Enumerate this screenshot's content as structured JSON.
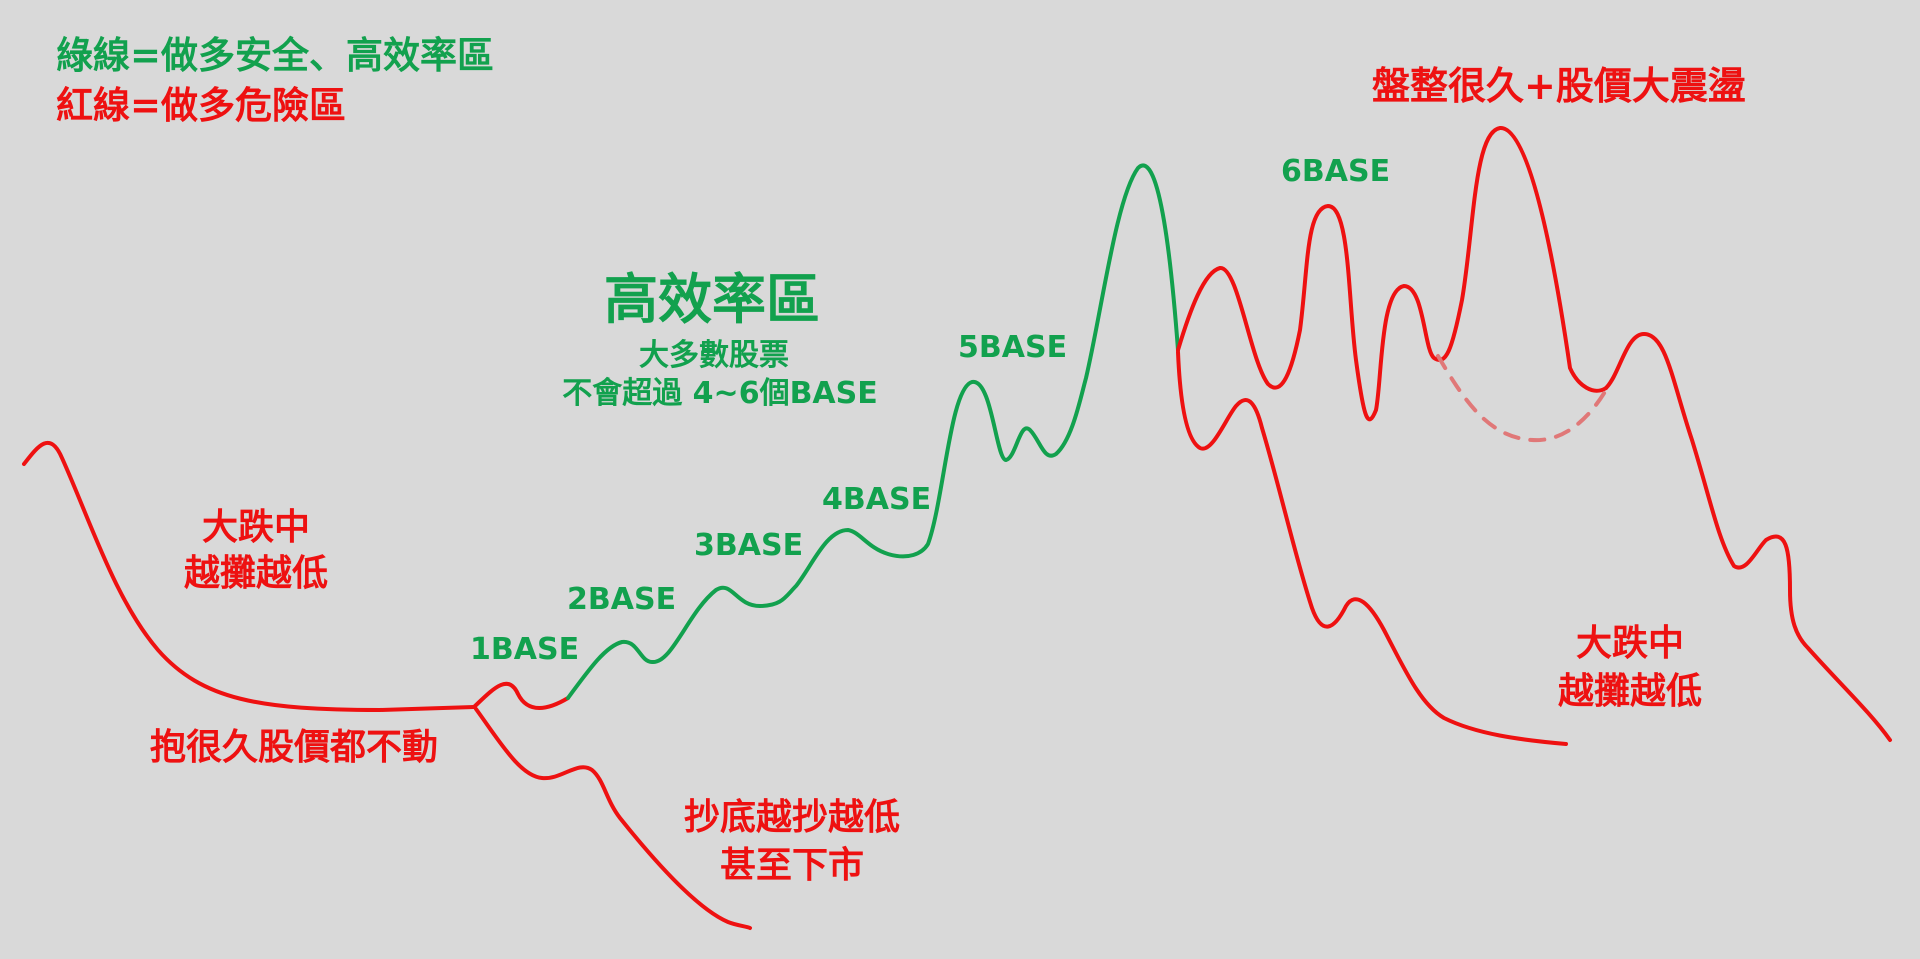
{
  "legend": {
    "green_line": "綠線=做多安全、高效率區",
    "red_line": "紅線=做多危險區"
  },
  "title_red": "盤整很久+股價大震盪",
  "efficiency_zone": {
    "title": "高效率區",
    "subtitle_line1": "大多數股票",
    "subtitle_line2": "不會超過 4~6個BASE"
  },
  "bases": [
    "1BASE",
    "2BASE",
    "3BASE",
    "4BASE",
    "5BASE",
    "6BASE"
  ],
  "notes": {
    "left_drop_line1": "大跌中",
    "left_drop_line2": "越攤越低",
    "hold_long": "抱很久股價都不動",
    "bottom_fish_line1": "抄底越抄越低",
    "bottom_fish_line2": "甚至下市",
    "right_drop_line1": "大跌中",
    "right_drop_line2": "越攤越低"
  },
  "colors": {
    "background": "#d9d9d9",
    "green": "#12a14e",
    "red": "#ee1111",
    "dashed": "#e07878"
  }
}
